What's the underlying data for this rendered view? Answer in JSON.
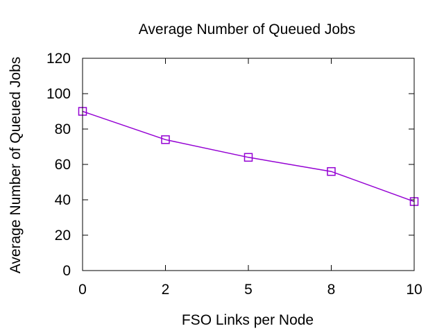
{
  "chart_data": {
    "type": "line",
    "title": "Average Number of Queued Jobs",
    "xlabel": "FSO Links per Node",
    "ylabel": "Average Number of Queued Jobs",
    "categories": [
      "0",
      "2",
      "5",
      "8",
      "10"
    ],
    "ylim": [
      0,
      120
    ],
    "yticks": [
      0,
      20,
      40,
      60,
      80,
      100,
      120
    ],
    "grid": false,
    "legend": "none",
    "series": [
      {
        "color": "#9400d3",
        "marker": "square",
        "values": [
          90,
          74,
          64,
          56,
          39
        ]
      }
    ]
  }
}
